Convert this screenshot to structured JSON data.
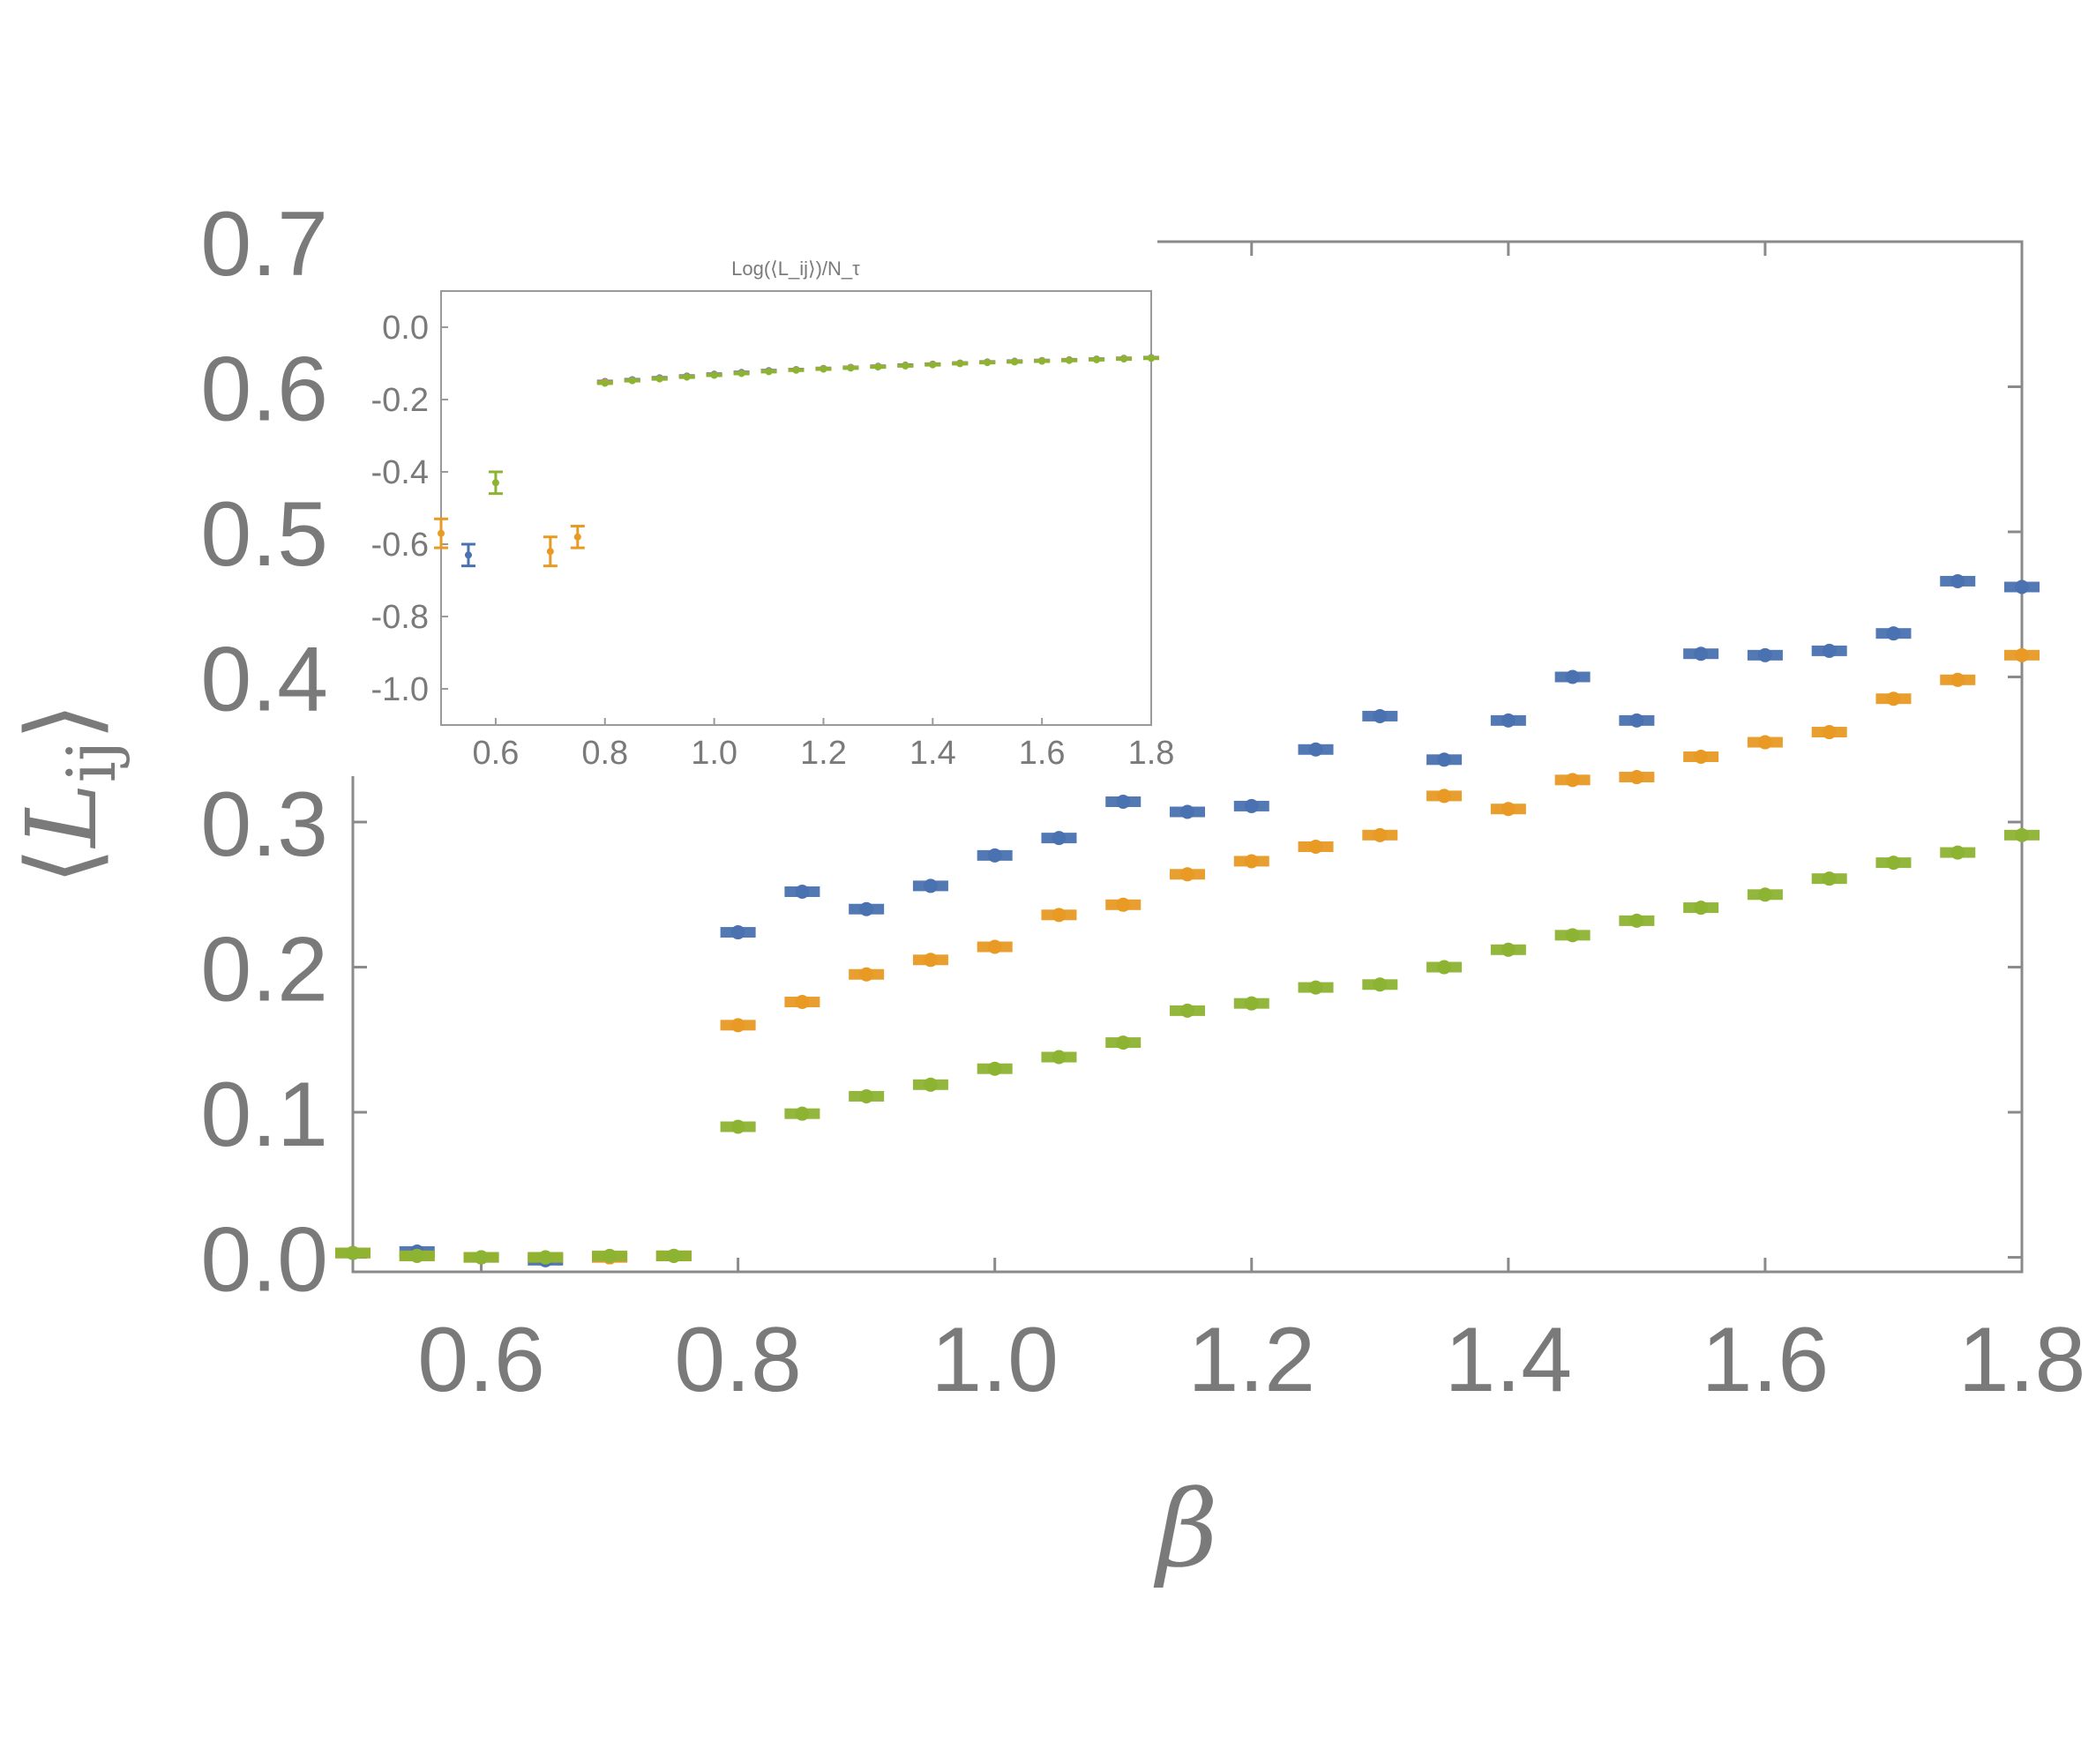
{
  "chart_data": [
    {
      "type": "scatter",
      "xlabel": "β",
      "ylabel": "⟨L_ij⟩",
      "ylabel_main": "L",
      "ylabel_sub": "ij",
      "xlim": [
        0.5,
        1.8
      ],
      "ylim": [
        -0.01,
        0.7
      ],
      "xticks": [
        "0.6",
        "0.8",
        "1.0",
        "1.2",
        "1.4",
        "1.6",
        "1.8"
      ],
      "yticks": [
        "0.0",
        "0.1",
        "0.2",
        "0.3",
        "0.4",
        "0.5",
        "0.6",
        "0.7"
      ],
      "grid": false,
      "series_colors": [
        "#4a72b0",
        "#e89a24",
        "#8db333"
      ],
      "series": [
        {
          "x": [
            0.5,
            0.55,
            0.6,
            0.65,
            0.7,
            0.75,
            0.8,
            0.85,
            0.9,
            0.95,
            1.0,
            1.05,
            1.1,
            1.15,
            1.2,
            1.25,
            1.3,
            1.35,
            1.4,
            1.45,
            1.5,
            1.55,
            1.6,
            1.65,
            1.7,
            1.75,
            1.8
          ],
          "values": [
            0.003,
            0.004,
            0.0,
            -0.002,
            0.0,
            0.001,
            0.224,
            0.252,
            0.24,
            0.256,
            0.277,
            0.289,
            0.314,
            0.307,
            0.311,
            0.35,
            0.373,
            0.343,
            0.37,
            0.4,
            0.37,
            0.416,
            0.415,
            0.418,
            0.43,
            0.466,
            0.462
          ]
        },
        {
          "x": [
            0.5,
            0.55,
            0.6,
            0.65,
            0.7,
            0.75,
            0.8,
            0.85,
            0.9,
            0.95,
            1.0,
            1.05,
            1.1,
            1.15,
            1.2,
            1.25,
            1.3,
            1.35,
            1.4,
            1.45,
            1.5,
            1.55,
            1.6,
            1.65,
            1.7,
            1.75,
            1.8
          ],
          "values": [
            0.003,
            0.001,
            0.0,
            0.0,
            0.0,
            0.001,
            0.16,
            0.176,
            0.195,
            0.205,
            0.214,
            0.236,
            0.243,
            0.264,
            0.273,
            0.283,
            0.291,
            0.318,
            0.309,
            0.329,
            0.331,
            0.345,
            0.355,
            0.362,
            0.385,
            0.398,
            0.415
          ]
        },
        {
          "x": [
            0.5,
            0.55,
            0.6,
            0.65,
            0.7,
            0.75,
            0.8,
            0.85,
            0.9,
            0.95,
            1.0,
            1.05,
            1.1,
            1.15,
            1.2,
            1.25,
            1.3,
            1.35,
            1.4,
            1.45,
            1.5,
            1.55,
            1.6,
            1.65,
            1.7,
            1.75,
            1.8
          ],
          "values": [
            0.003,
            0.001,
            0.0,
            0.0,
            0.001,
            0.001,
            0.09,
            0.099,
            0.111,
            0.119,
            0.13,
            0.138,
            0.148,
            0.17,
            0.175,
            0.186,
            0.188,
            0.2,
            0.212,
            0.222,
            0.232,
            0.241,
            0.25,
            0.261,
            0.272,
            0.279,
            0.291
          ]
        }
      ]
    },
    {
      "type": "scatter",
      "title": "Log(⟨L_ij⟩)/N_τ",
      "xlim": [
        0.5,
        1.8
      ],
      "ylim": [
        -1.1,
        0.1
      ],
      "xticks": [
        "0.6",
        "0.8",
        "1.0",
        "1.2",
        "1.4",
        "1.6",
        "1.8"
      ],
      "yticks": [
        "0.0",
        "-0.2",
        "-0.4",
        "-0.6",
        "-0.8",
        "-1.0"
      ],
      "grid": false,
      "series": [
        {
          "x": [
            0.55,
            0.8,
            0.85,
            0.9,
            0.95,
            1.0,
            1.05,
            1.1,
            1.15,
            1.2,
            1.25,
            1.3,
            1.35,
            1.4,
            1.45,
            1.5,
            1.55,
            1.6,
            1.65,
            1.7,
            1.75,
            1.8
          ],
          "values": [
            -0.63,
            -0.15,
            -0.145,
            -0.14,
            -0.135,
            -0.13,
            -0.125,
            -0.12,
            -0.117,
            -0.114,
            -0.111,
            -0.108,
            -0.105,
            -0.102,
            -0.099,
            -0.096,
            -0.094,
            -0.092,
            -0.09,
            -0.088,
            -0.086,
            -0.084
          ],
          "errors": [
            0.03,
            0.004,
            0.004,
            0.004,
            0.004,
            0.004,
            0.004,
            0.004,
            0.004,
            0.004,
            0.004,
            0.004,
            0.004,
            0.004,
            0.004,
            0.004,
            0.004,
            0.004,
            0.004,
            0.004,
            0.004,
            0.004
          ]
        },
        {
          "x": [
            0.5,
            0.7,
            0.75,
            0.8,
            0.85,
            0.9,
            0.95,
            1.0,
            1.05,
            1.1,
            1.15,
            1.2,
            1.25,
            1.3,
            1.35,
            1.4,
            1.45,
            1.5,
            1.55,
            1.6,
            1.65,
            1.7,
            1.75,
            1.8
          ],
          "values": [
            -0.57,
            -0.62,
            -0.58,
            -0.152,
            -0.147,
            -0.142,
            -0.137,
            -0.132,
            -0.127,
            -0.122,
            -0.118,
            -0.115,
            -0.112,
            -0.109,
            -0.106,
            -0.103,
            -0.1,
            -0.097,
            -0.095,
            -0.093,
            -0.091,
            -0.089,
            -0.087,
            -0.085
          ],
          "errors": [
            0.04,
            0.04,
            0.03,
            0.004,
            0.004,
            0.004,
            0.004,
            0.004,
            0.004,
            0.004,
            0.004,
            0.004,
            0.004,
            0.004,
            0.004,
            0.004,
            0.004,
            0.004,
            0.004,
            0.004,
            0.004,
            0.004,
            0.004,
            0.004
          ]
        },
        {
          "x": [
            0.6,
            0.8,
            0.85,
            0.9,
            0.95,
            1.0,
            1.05,
            1.1,
            1.15,
            1.2,
            1.25,
            1.3,
            1.35,
            1.4,
            1.45,
            1.5,
            1.55,
            1.6,
            1.65,
            1.7,
            1.75,
            1.8
          ],
          "values": [
            -0.43,
            -0.155,
            -0.148,
            -0.143,
            -0.138,
            -0.133,
            -0.128,
            -0.123,
            -0.119,
            -0.116,
            -0.113,
            -0.11,
            -0.107,
            -0.104,
            -0.101,
            -0.098,
            -0.096,
            -0.094,
            -0.092,
            -0.09,
            -0.088,
            -0.086
          ],
          "errors": [
            0.03,
            0.004,
            0.004,
            0.004,
            0.004,
            0.004,
            0.004,
            0.004,
            0.004,
            0.004,
            0.004,
            0.004,
            0.004,
            0.004,
            0.004,
            0.004,
            0.004,
            0.004,
            0.004,
            0.004,
            0.004,
            0.004
          ]
        }
      ]
    }
  ]
}
